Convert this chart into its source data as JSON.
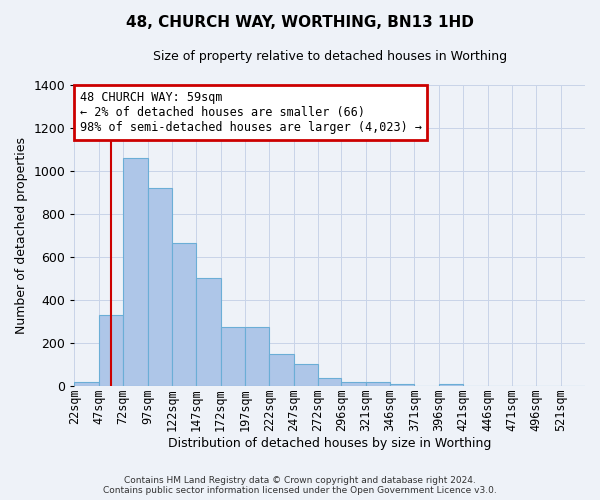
{
  "title": "48, CHURCH WAY, WORTHING, BN13 1HD",
  "subtitle": "Size of property relative to detached houses in Worthing",
  "xlabel": "Distribution of detached houses by size in Worthing",
  "ylabel": "Number of detached properties",
  "bin_labels": [
    "22sqm",
    "47sqm",
    "72sqm",
    "97sqm",
    "122sqm",
    "147sqm",
    "172sqm",
    "197sqm",
    "222sqm",
    "247sqm",
    "272sqm",
    "296sqm",
    "321sqm",
    "346sqm",
    "371sqm",
    "396sqm",
    "421sqm",
    "446sqm",
    "471sqm",
    "496sqm",
    "521sqm"
  ],
  "bar_values": [
    18,
    330,
    1060,
    920,
    665,
    500,
    275,
    275,
    150,
    100,
    38,
    20,
    18,
    10,
    0,
    10,
    0,
    0,
    0,
    0,
    0
  ],
  "bar_color": "#aec6e8",
  "bar_edge_color": "#6baed6",
  "vline_x": 59,
  "bin_edges": [
    22,
    47,
    72,
    97,
    122,
    147,
    172,
    197,
    222,
    247,
    272,
    296,
    321,
    346,
    371,
    396,
    421,
    446,
    471,
    496,
    521,
    546
  ],
  "ylim": [
    0,
    1400
  ],
  "yticks": [
    0,
    200,
    400,
    600,
    800,
    1000,
    1200,
    1400
  ],
  "annotation_lines": [
    "48 CHURCH WAY: 59sqm",
    "← 2% of detached houses are smaller (66)",
    "98% of semi-detached houses are larger (4,023) →"
  ],
  "annotation_box_color": "#cc0000",
  "vline_color": "#cc0000",
  "footer_line1": "Contains HM Land Registry data © Crown copyright and database right 2024.",
  "footer_line2": "Contains public sector information licensed under the Open Government Licence v3.0.",
  "background_color": "#eef2f8",
  "grid_color": "#c8d4e8",
  "title_fontsize": 11,
  "subtitle_fontsize": 9,
  "ylabel_fontsize": 9,
  "xlabel_fontsize": 9,
  "tick_fontsize": 8.5,
  "footer_fontsize": 6.5
}
